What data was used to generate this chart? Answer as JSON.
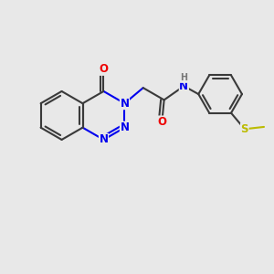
{
  "bg_color": "#e8e8e8",
  "bond_color": "#3a3a3a",
  "nitrogen_color": "#0000ee",
  "oxygen_color": "#ee0000",
  "sulfur_color": "#bbbb00",
  "hydrogen_color": "#777777",
  "line_width": 1.5,
  "dbo": 0.12,
  "font_size": 8.5,
  "fig_size": 3.0,
  "dpi": 100,
  "xlim": [
    0,
    10
  ],
  "ylim": [
    0,
    10
  ]
}
